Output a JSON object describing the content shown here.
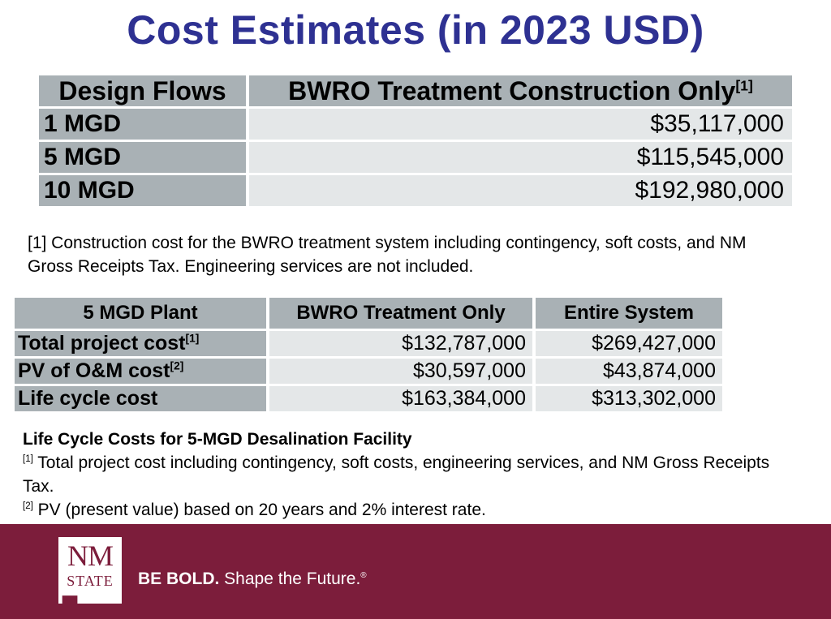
{
  "title": "Cost Estimates (in 2023 USD)",
  "table1": {
    "headers": [
      "Design Flows",
      "BWRO Treatment Construction Only"
    ],
    "header_sup": "[1]",
    "rows": [
      {
        "label": "1 MGD",
        "value": "$35,117,000"
      },
      {
        "label": "5 MGD",
        "value": "$115,545,000"
      },
      {
        "label": "10 MGD",
        "value": "$192,980,000"
      }
    ]
  },
  "note1": "[1] Construction cost for the BWRO treatment system including contingency, soft costs, and NM Gross Receipts Tax. Engineering services are not included.",
  "table2": {
    "headers": [
      "5 MGD Plant",
      "BWRO Treatment Only",
      "Entire System"
    ],
    "rows": [
      {
        "label": "Total project cost",
        "sup": "[1]",
        "bwro": "$132,787,000",
        "entire": "$269,427,000"
      },
      {
        "label": "PV of O&M cost",
        "sup": "[2]",
        "bwro": "$30,597,000",
        "entire": "$43,874,000"
      },
      {
        "label": "Life cycle cost",
        "sup": "",
        "bwro": "$163,384,000",
        "entire": "$313,302,000"
      }
    ]
  },
  "note2": {
    "caption": "Life Cycle Costs for 5-MGD Desalination Facility",
    "line1_sup": "[1]",
    "line1": " Total project cost including contingency, soft costs, engineering services, and NM Gross Receipts Tax.",
    "line2_sup": "[2]",
    "line2": " PV (present value) based on 20 years and 2% interest rate."
  },
  "footer": {
    "logo_top": "NM",
    "logo_bottom": "STATE",
    "tagline_bold": "BE BOLD.",
    "tagline_rest": " Shape the Future.",
    "tagline_mark": "®",
    "background": "#7c1d3b"
  }
}
